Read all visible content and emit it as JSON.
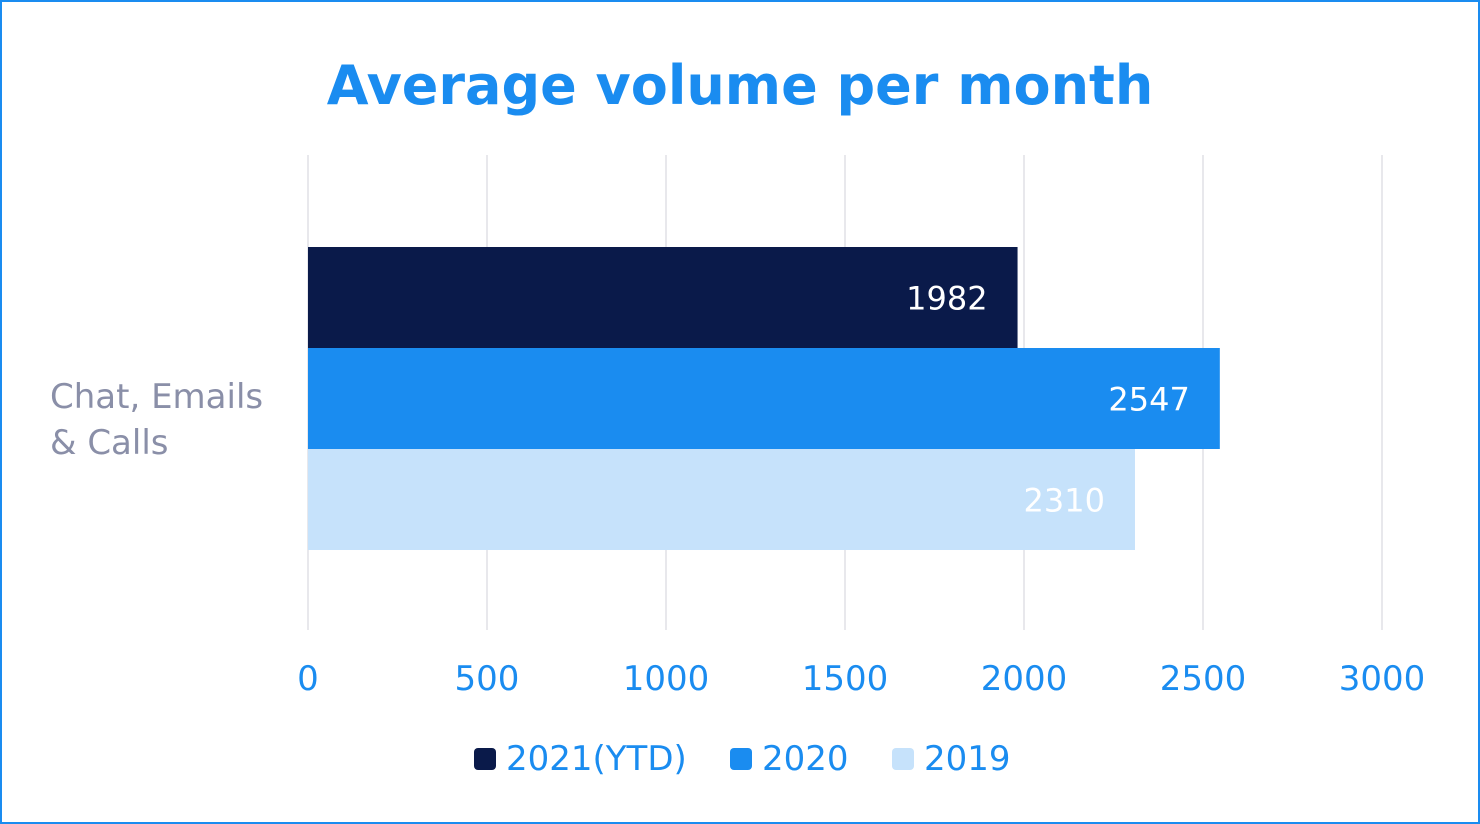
{
  "chart_data": {
    "type": "bar",
    "orientation": "horizontal",
    "title": "Average volume per month",
    "categories": [
      "Chat, Emails & Calls"
    ],
    "category_lines": [
      "Chat, Emails",
      "& Calls"
    ],
    "series": [
      {
        "name": "2021(YTD)",
        "values": [
          1982
        ],
        "labels": [
          "1982"
        ],
        "color": "#0a1a4a"
      },
      {
        "name": "2020",
        "values": [
          2547
        ],
        "labels": [
          "2547"
        ],
        "color": "#1a8cf0"
      },
      {
        "name": "2019",
        "values": [
          2310
        ],
        "labels": [
          "2310"
        ],
        "color": "#c6e2fb"
      }
    ],
    "xlim": [
      0,
      3000
    ],
    "xticks": [
      "0",
      "500",
      "1000",
      "1500",
      "2000",
      "2500",
      "3000"
    ],
    "grid": true,
    "legend_position": "bottom"
  }
}
